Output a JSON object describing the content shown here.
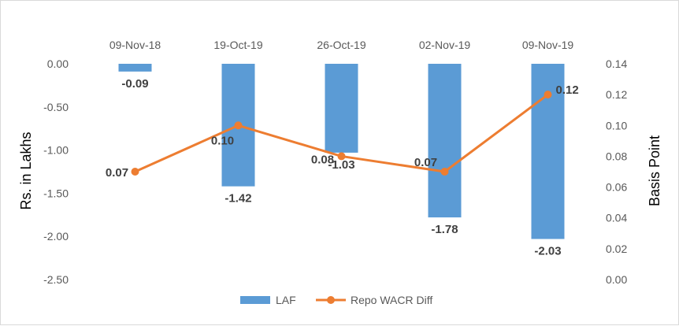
{
  "chart_data": {
    "type": "bar",
    "categories": [
      "09-Nov-18",
      "19-Oct-19",
      "26-Oct-19",
      "02-Nov-19",
      "09-Nov-19"
    ],
    "series": [
      {
        "name": "LAF",
        "type": "bar",
        "axis": "left",
        "values": [
          -0.09,
          -1.42,
          -1.03,
          -1.78,
          -2.03
        ],
        "labels": [
          "-0.09",
          "-1.42",
          "-1.03",
          "-1.78",
          "-2.03"
        ],
        "color": "#5b9bd5"
      },
      {
        "name": "Repo WACR Diff",
        "type": "line",
        "axis": "right",
        "values": [
          0.07,
          0.1,
          0.08,
          0.07,
          0.12
        ],
        "labels": [
          "0.07",
          "0.10",
          "0.08",
          "0.07",
          "0.12"
        ],
        "color": "#ed7d31"
      }
    ],
    "ylabel": "Rs. in Lakhs",
    "y2label": "Basis Point",
    "ylim": [
      -2.5,
      0
    ],
    "y2lim": [
      0,
      0.14
    ],
    "yticks": [
      "0.00",
      "-0.50",
      "-1.00",
      "-1.50",
      "-2.00",
      "-2.50"
    ],
    "y2ticks": [
      "0.14",
      "0.12",
      "0.10",
      "0.08",
      "0.06",
      "0.04",
      "0.02",
      "0.00"
    ],
    "grid": false,
    "legend_position": "bottom"
  }
}
